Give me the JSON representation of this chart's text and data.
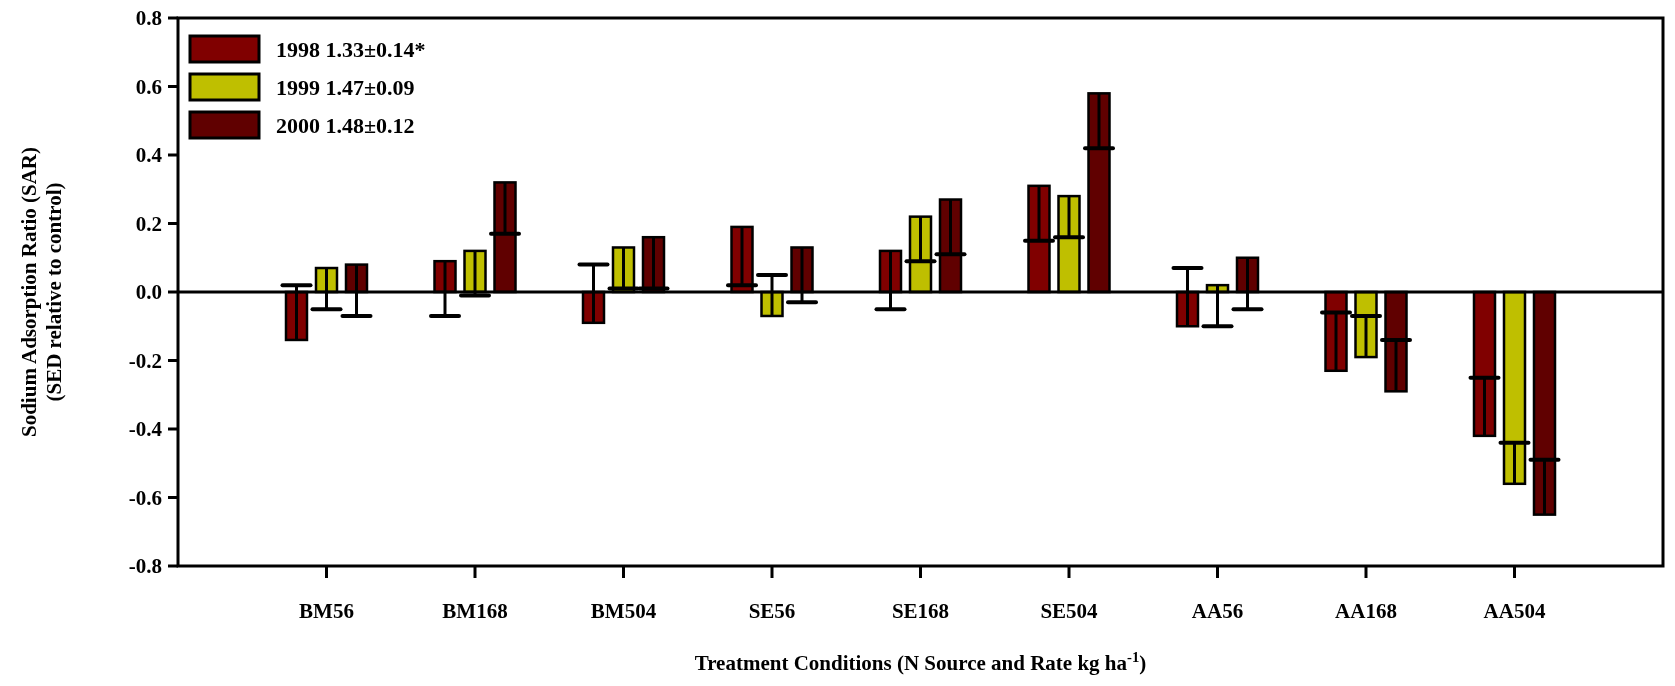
{
  "chart_data": {
    "type": "bar",
    "xlabel": "Treatment Conditions (N Source and Rate kg ha$^{-1}$)",
    "ylabel": "Sodium Adsorption Ratio (SAR)\n(SED relative to control)",
    "categories": [
      "BM56",
      "BM168",
      "BM504",
      "SE56",
      "SE168",
      "SE504",
      "AA56",
      "AA168",
      "AA504"
    ],
    "series": [
      {
        "name": "1998 1.33±0.14*",
        "color": "#800000",
        "values": [
          -0.14,
          0.09,
          -0.09,
          0.19,
          0.12,
          0.31,
          -0.1,
          -0.23,
          -0.42
        ],
        "errors": [
          [
            -0.14,
            0.02
          ],
          [
            -0.07,
            0.09
          ],
          [
            -0.09,
            0.08
          ],
          [
            0.02,
            0.19
          ],
          [
            -0.05,
            0.12
          ],
          [
            0.15,
            0.31
          ],
          [
            -0.1,
            0.07
          ],
          [
            -0.23,
            -0.06
          ],
          [
            -0.42,
            -0.25
          ]
        ]
      },
      {
        "name": "1999 1.47±0.09",
        "color": "#bfbf00",
        "values": [
          0.07,
          0.12,
          0.13,
          -0.07,
          0.22,
          0.28,
          0.02,
          -0.19,
          -0.56
        ],
        "errors": [
          [
            -0.05,
            0.07
          ],
          [
            -0.01,
            0.12
          ],
          [
            0.01,
            0.13
          ],
          [
            -0.07,
            0.05
          ],
          [
            0.09,
            0.22
          ],
          [
            0.16,
            0.28
          ],
          [
            -0.1,
            0.02
          ],
          [
            -0.19,
            -0.07
          ],
          [
            -0.56,
            -0.44
          ]
        ]
      },
      {
        "name": "2000 1.48±0.12",
        "color": "#600000",
        "values": [
          0.08,
          0.32,
          0.16,
          0.13,
          0.27,
          0.58,
          0.1,
          -0.29,
          -0.65
        ],
        "errors": [
          [
            -0.07,
            0.08
          ],
          [
            0.17,
            0.32
          ],
          [
            0.01,
            0.16
          ],
          [
            -0.03,
            0.13
          ],
          [
            0.11,
            0.27
          ],
          [
            0.42,
            0.58
          ],
          [
            -0.05,
            0.1
          ],
          [
            -0.29,
            -0.14
          ],
          [
            -0.65,
            -0.49
          ]
        ]
      }
    ],
    "ylim": [
      -0.8,
      0.8
    ],
    "yticks": [
      {
        "value": 0.8,
        "label": "0.8"
      },
      {
        "value": 0.6,
        "label": "0.6"
      },
      {
        "value": 0.4,
        "label": "0.4"
      },
      {
        "value": 0.2,
        "label": "0.2"
      },
      {
        "value": 0,
        "label": "0.0"
      },
      {
        "value": -0.2,
        "label": "-0.2"
      },
      {
        "value": -0.4,
        "label": "-0.4"
      },
      {
        "value": -0.6,
        "label": "-0.6"
      },
      {
        "value": -0.8,
        "label": "-0.8"
      }
    ],
    "ref_lines": [
      {
        "axis": "y",
        "value": 0,
        "label": null
      }
    ],
    "legend": "top left",
    "grid": false
  }
}
